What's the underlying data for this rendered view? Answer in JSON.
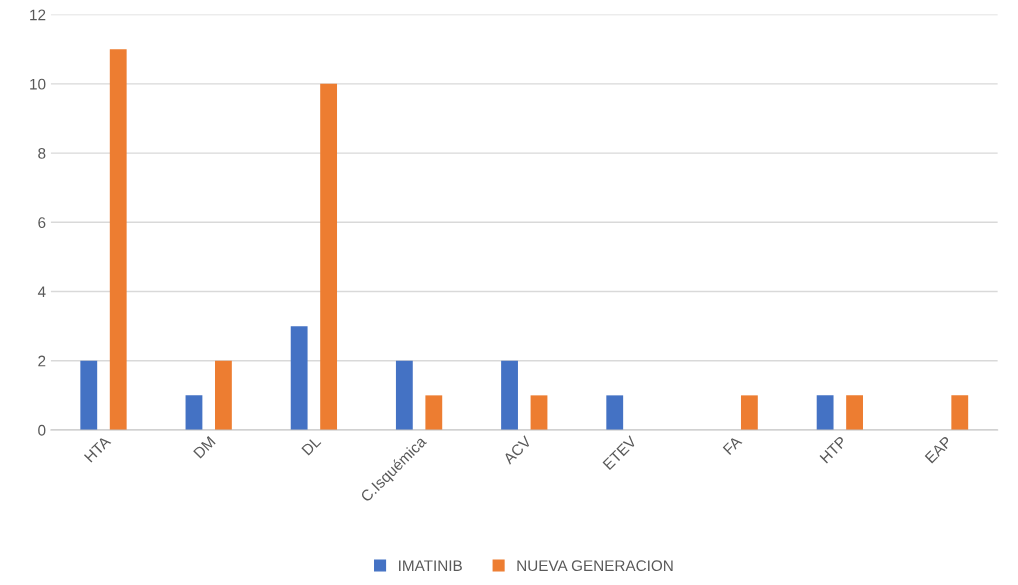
{
  "chart_data": {
    "type": "bar",
    "categories": [
      "HTA",
      "DM",
      "DL",
      "C.Isquémica",
      "ACV",
      "ETEV",
      "FA",
      "HTP",
      "EAP"
    ],
    "series": [
      {
        "name": "IMATINIB",
        "color": "#4472c4",
        "values": [
          2,
          1,
          3,
          2,
          2,
          1,
          0,
          1,
          0
        ]
      },
      {
        "name": "NUEVA GENERACION",
        "color": "#ed7d31",
        "values": [
          11,
          2,
          10,
          1,
          1,
          0,
          1,
          1,
          1
        ]
      }
    ],
    "ylim": [
      0,
      12
    ],
    "yticks": [
      0,
      2,
      4,
      6,
      8,
      10,
      12
    ],
    "grid": "y",
    "legend": "bottom"
  }
}
